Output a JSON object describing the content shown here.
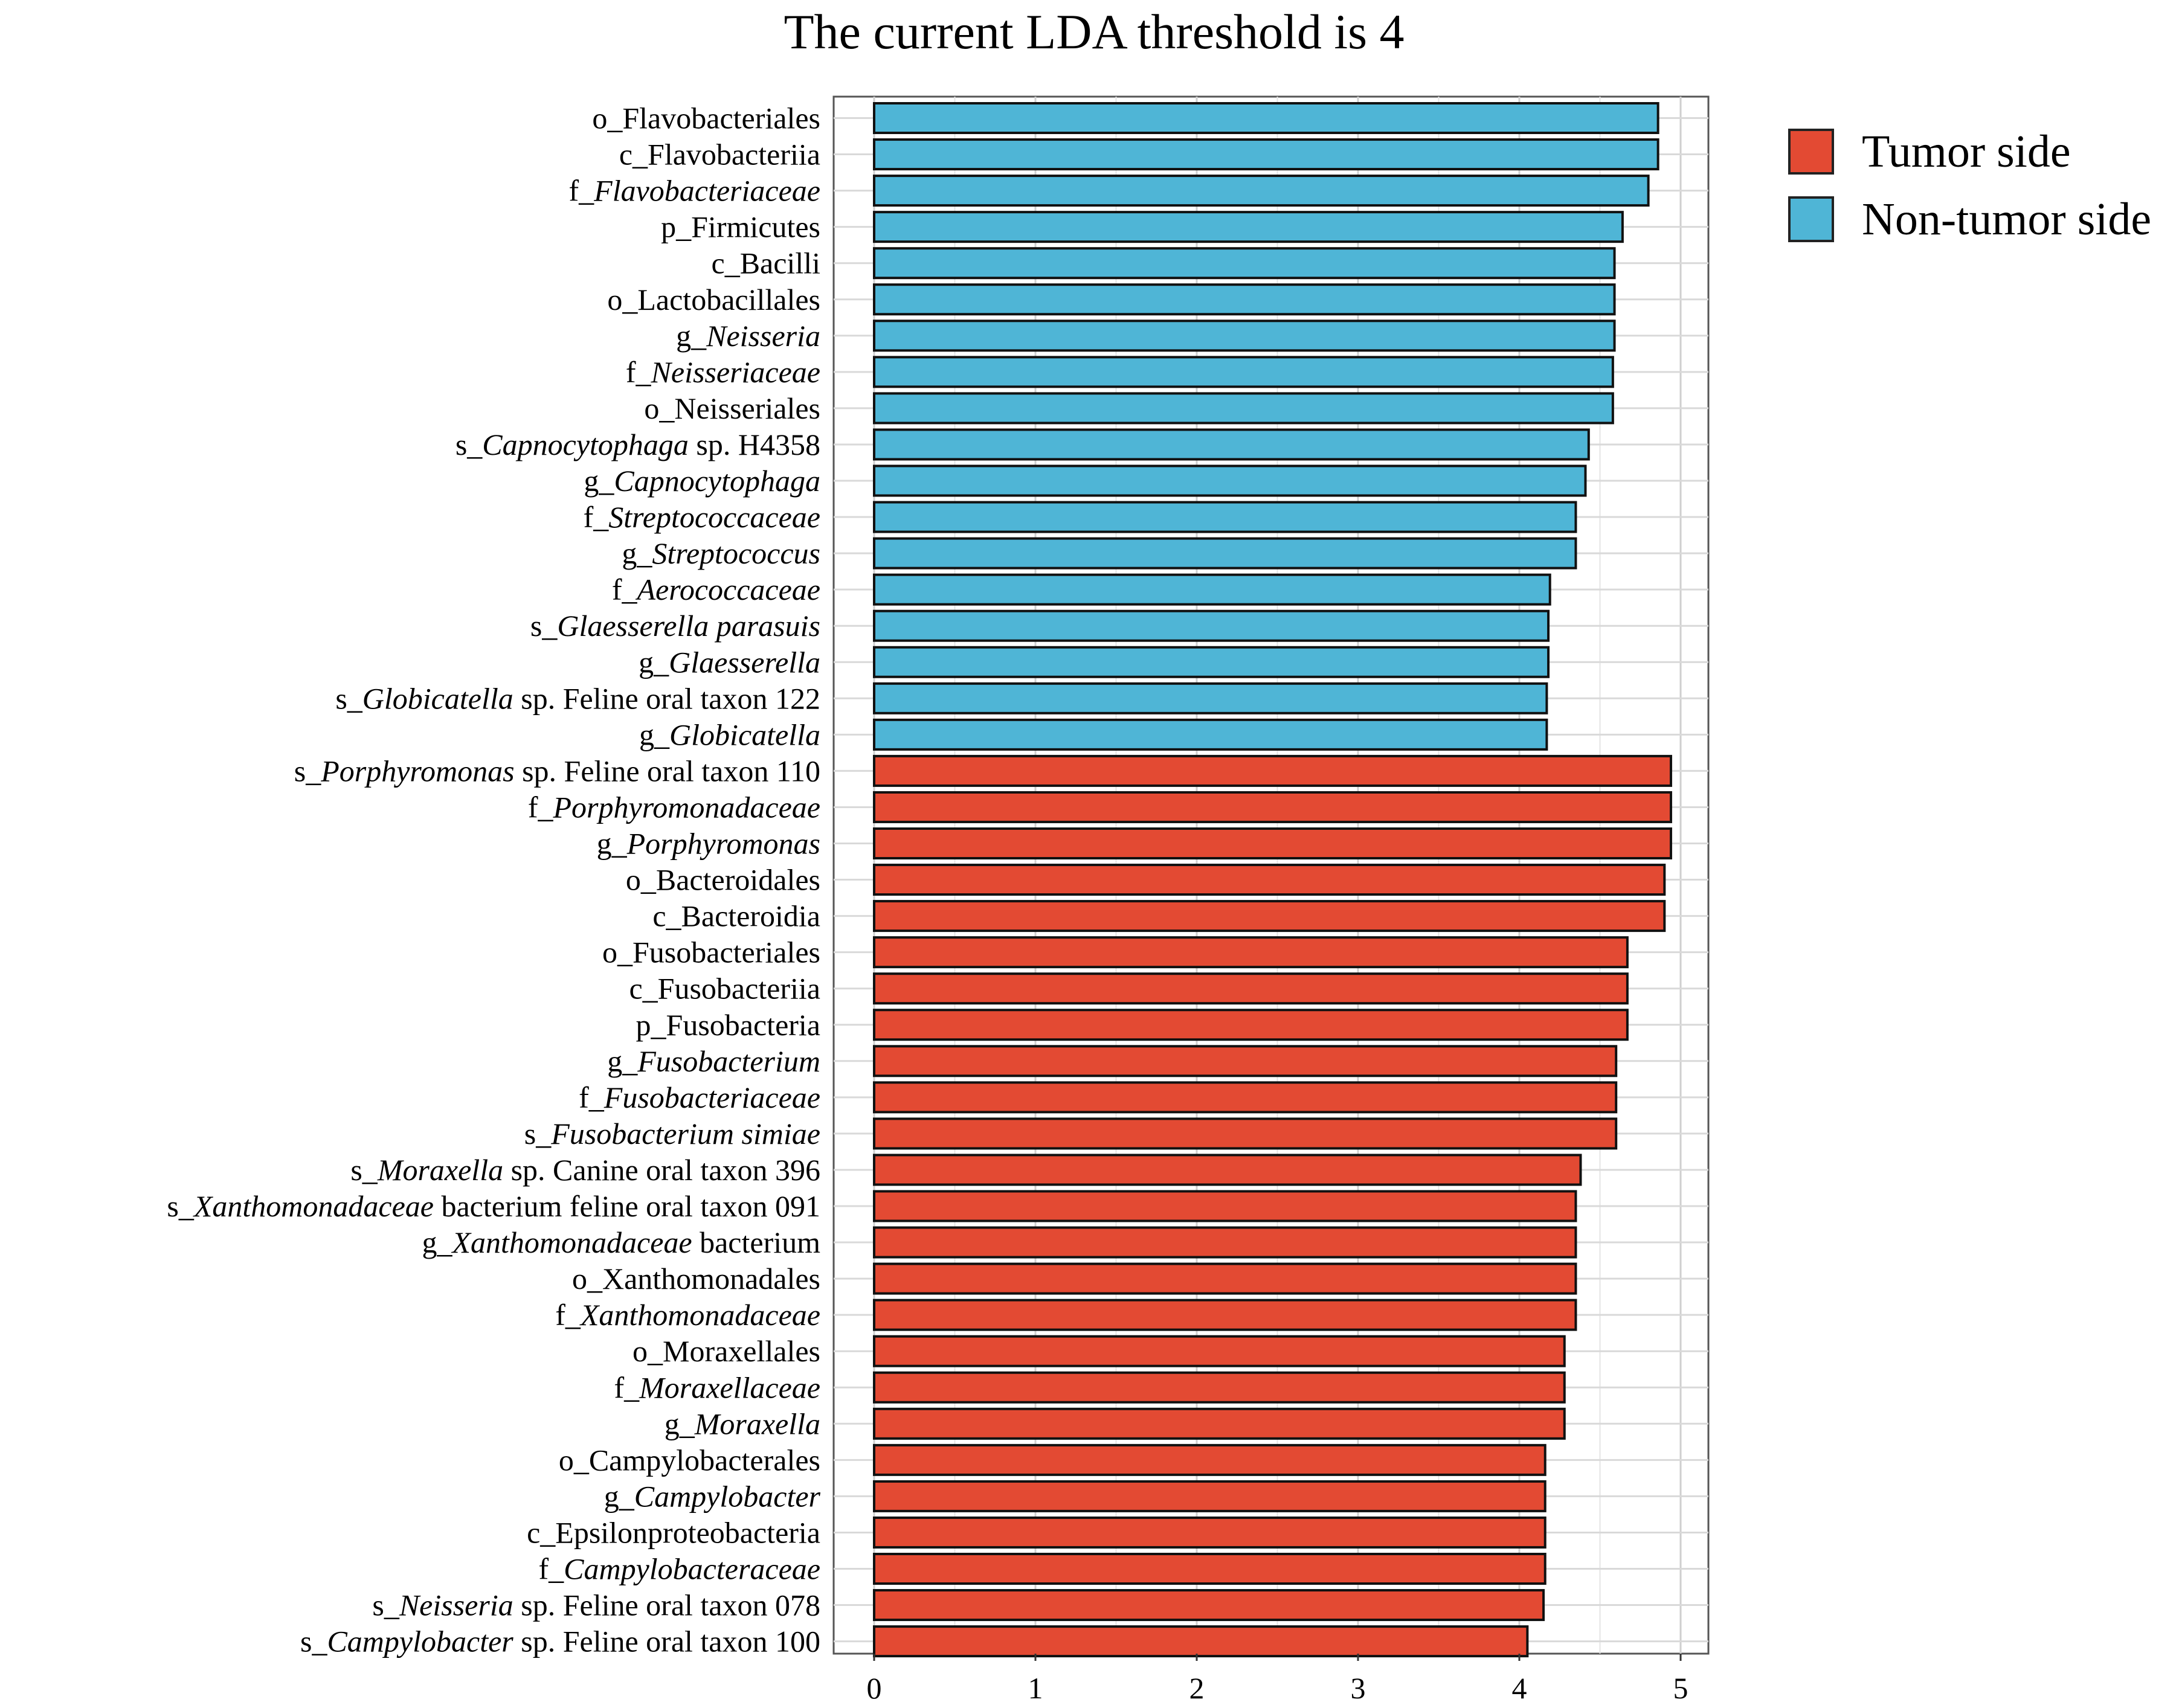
{
  "chart_data": {
    "type": "bar",
    "orientation": "horizontal",
    "title": "The current LDA threshold is 4",
    "xlabel": "",
    "ylabel": "",
    "xlim": [
      0,
      5.2
    ],
    "xticks": [
      0,
      1,
      2,
      3,
      4,
      5
    ],
    "grid": true,
    "legend_position": "top-right",
    "colors": {
      "Tumor side": "#E34A33",
      "Non-tumor side": "#4FB5D6"
    },
    "series": [
      {
        "name": "Tumor side",
        "color": "#E34A33"
      },
      {
        "name": "Non-tumor side",
        "color": "#4FB5D6"
      }
    ],
    "bars": [
      {
        "parts": [
          {
            "t": "o_Flavobacteriales"
          }
        ],
        "value": 4.86,
        "group": "Non-tumor side"
      },
      {
        "parts": [
          {
            "t": "c_Flavobacteriia"
          }
        ],
        "value": 4.86,
        "group": "Non-tumor side"
      },
      {
        "parts": [
          {
            "t": "f_"
          },
          {
            "t": "Flavobacteriaceae",
            "i": true
          }
        ],
        "value": 4.8,
        "group": "Non-tumor side"
      },
      {
        "parts": [
          {
            "t": "p_Firmicutes"
          }
        ],
        "value": 4.64,
        "group": "Non-tumor side"
      },
      {
        "parts": [
          {
            "t": "c_Bacilli"
          }
        ],
        "value": 4.59,
        "group": "Non-tumor side"
      },
      {
        "parts": [
          {
            "t": "o_Lactobacillales"
          }
        ],
        "value": 4.59,
        "group": "Non-tumor side"
      },
      {
        "parts": [
          {
            "t": "g_"
          },
          {
            "t": "Neisseria",
            "i": true
          }
        ],
        "value": 4.59,
        "group": "Non-tumor side"
      },
      {
        "parts": [
          {
            "t": "f_"
          },
          {
            "t": "Neisseriaceae",
            "i": true
          }
        ],
        "value": 4.58,
        "group": "Non-tumor side"
      },
      {
        "parts": [
          {
            "t": "o_Neisseriales"
          }
        ],
        "value": 4.58,
        "group": "Non-tumor side"
      },
      {
        "parts": [
          {
            "t": "s_"
          },
          {
            "t": "Capnocytophaga",
            "i": true
          },
          {
            "t": " sp. H4358"
          }
        ],
        "value": 4.43,
        "group": "Non-tumor side"
      },
      {
        "parts": [
          {
            "t": "g_"
          },
          {
            "t": "Capnocytophaga",
            "i": true
          }
        ],
        "value": 4.41,
        "group": "Non-tumor side"
      },
      {
        "parts": [
          {
            "t": "f_"
          },
          {
            "t": "Streptococcaceae",
            "i": true
          }
        ],
        "value": 4.35,
        "group": "Non-tumor side"
      },
      {
        "parts": [
          {
            "t": "g_"
          },
          {
            "t": "Streptococcus",
            "i": true
          }
        ],
        "value": 4.35,
        "group": "Non-tumor side"
      },
      {
        "parts": [
          {
            "t": "f_"
          },
          {
            "t": "Aerococcaceae",
            "i": true
          }
        ],
        "value": 4.19,
        "group": "Non-tumor side"
      },
      {
        "parts": [
          {
            "t": "s_"
          },
          {
            "t": "Glaesserella parasuis",
            "i": true
          }
        ],
        "value": 4.18,
        "group": "Non-tumor side"
      },
      {
        "parts": [
          {
            "t": "g_"
          },
          {
            "t": "Glaesserella",
            "i": true
          }
        ],
        "value": 4.18,
        "group": "Non-tumor side"
      },
      {
        "parts": [
          {
            "t": "s_"
          },
          {
            "t": "Globicatella",
            "i": true
          },
          {
            "t": " sp. Feline oral taxon 122"
          }
        ],
        "value": 4.17,
        "group": "Non-tumor side"
      },
      {
        "parts": [
          {
            "t": "g_"
          },
          {
            "t": "Globicatella",
            "i": true
          }
        ],
        "value": 4.17,
        "group": "Non-tumor side"
      },
      {
        "parts": [
          {
            "t": "s_"
          },
          {
            "t": "Porphyromonas",
            "i": true
          },
          {
            "t": " sp. Feline oral taxon 110"
          }
        ],
        "value": 4.94,
        "group": "Tumor side"
      },
      {
        "parts": [
          {
            "t": "f_"
          },
          {
            "t": "Porphyromonadaceae",
            "i": true
          }
        ],
        "value": 4.94,
        "group": "Tumor side"
      },
      {
        "parts": [
          {
            "t": "g_"
          },
          {
            "t": "Porphyromonas",
            "i": true
          }
        ],
        "value": 4.94,
        "group": "Tumor side"
      },
      {
        "parts": [
          {
            "t": "o_Bacteroidales"
          }
        ],
        "value": 4.9,
        "group": "Tumor side"
      },
      {
        "parts": [
          {
            "t": "c_Bacteroidia"
          }
        ],
        "value": 4.9,
        "group": "Tumor side"
      },
      {
        "parts": [
          {
            "t": "o_Fusobacteriales"
          }
        ],
        "value": 4.67,
        "group": "Tumor side"
      },
      {
        "parts": [
          {
            "t": "c_Fusobacteriia"
          }
        ],
        "value": 4.67,
        "group": "Tumor side"
      },
      {
        "parts": [
          {
            "t": "p_Fusobacteria"
          }
        ],
        "value": 4.67,
        "group": "Tumor side"
      },
      {
        "parts": [
          {
            "t": "g_"
          },
          {
            "t": "Fusobacterium",
            "i": true
          }
        ],
        "value": 4.6,
        "group": "Tumor side"
      },
      {
        "parts": [
          {
            "t": "f_"
          },
          {
            "t": "Fusobacteriaceae",
            "i": true
          }
        ],
        "value": 4.6,
        "group": "Tumor side"
      },
      {
        "parts": [
          {
            "t": "s_"
          },
          {
            "t": "Fusobacterium simiae",
            "i": true
          }
        ],
        "value": 4.6,
        "group": "Tumor side"
      },
      {
        "parts": [
          {
            "t": "s_"
          },
          {
            "t": "Moraxella",
            "i": true
          },
          {
            "t": " sp. Canine oral taxon 396"
          }
        ],
        "value": 4.38,
        "group": "Tumor side"
      },
      {
        "parts": [
          {
            "t": "s_"
          },
          {
            "t": "Xanthomonadaceae",
            "i": true
          },
          {
            "t": " bacterium feline oral taxon 091"
          }
        ],
        "value": 4.35,
        "group": "Tumor side"
      },
      {
        "parts": [
          {
            "t": "g_"
          },
          {
            "t": "Xanthomonadaceae",
            "i": true
          },
          {
            "t": " bacterium"
          }
        ],
        "value": 4.35,
        "group": "Tumor side"
      },
      {
        "parts": [
          {
            "t": "o_Xanthomonadales"
          }
        ],
        "value": 4.35,
        "group": "Tumor side"
      },
      {
        "parts": [
          {
            "t": "f_"
          },
          {
            "t": "Xanthomonadaceae",
            "i": true
          }
        ],
        "value": 4.35,
        "group": "Tumor side"
      },
      {
        "parts": [
          {
            "t": "o_Moraxellales"
          }
        ],
        "value": 4.28,
        "group": "Tumor side"
      },
      {
        "parts": [
          {
            "t": "f_"
          },
          {
            "t": "Moraxellaceae",
            "i": true
          }
        ],
        "value": 4.28,
        "group": "Tumor side"
      },
      {
        "parts": [
          {
            "t": "g_"
          },
          {
            "t": "Moraxella",
            "i": true
          }
        ],
        "value": 4.28,
        "group": "Tumor side"
      },
      {
        "parts": [
          {
            "t": "o_Campylobacterales"
          }
        ],
        "value": 4.16,
        "group": "Tumor side"
      },
      {
        "parts": [
          {
            "t": "g_"
          },
          {
            "t": "Campylobacter",
            "i": true
          }
        ],
        "value": 4.16,
        "group": "Tumor side"
      },
      {
        "parts": [
          {
            "t": "c_Epsilonproteobacteria"
          }
        ],
        "value": 4.16,
        "group": "Tumor side"
      },
      {
        "parts": [
          {
            "t": "f_"
          },
          {
            "t": "Campylobacteraceae",
            "i": true
          }
        ],
        "value": 4.16,
        "group": "Tumor side"
      },
      {
        "parts": [
          {
            "t": "s_"
          },
          {
            "t": "Neisseria",
            "i": true
          },
          {
            "t": " sp. Feline oral taxon 078"
          }
        ],
        "value": 4.15,
        "group": "Tumor side"
      },
      {
        "parts": [
          {
            "t": "s_"
          },
          {
            "t": "Campylobacter",
            "i": true
          },
          {
            "t": " sp. Feline oral taxon 100"
          }
        ],
        "value": 4.05,
        "group": "Tumor side"
      }
    ]
  }
}
